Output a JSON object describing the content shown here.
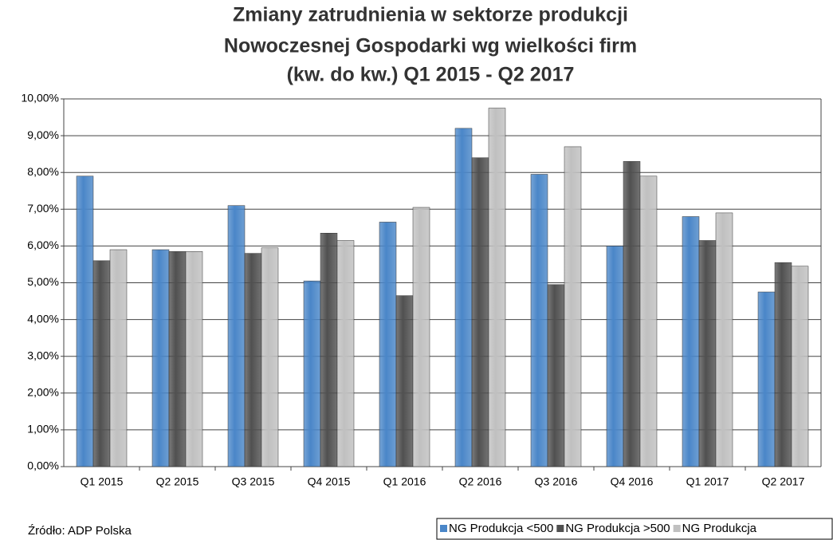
{
  "chart_data": {
    "type": "bar",
    "title": [
      "Zmiany  zatrudnienia w sektorze produkcji",
      "Nowoczesnej Gospodarki wg wielkości firm",
      "(kw. do kw.) Q1 2015 - Q2 2017"
    ],
    "categories": [
      "Q1 2015",
      "Q2 2015",
      "Q3 2015",
      "Q4 2015",
      "Q1 2016",
      "Q2 2016",
      "Q3 2016",
      "Q4 2016",
      "Q1 2017",
      "Q2 2017"
    ],
    "series": [
      {
        "name": "NG Produkcja <500",
        "color": "#4a86c8",
        "values": [
          7.9,
          5.9,
          7.1,
          5.05,
          6.65,
          9.2,
          7.95,
          6.0,
          6.8,
          4.75
        ]
      },
      {
        "name": "NG Produkcja >500",
        "color": "#505050",
        "values": [
          5.6,
          5.85,
          5.8,
          6.35,
          4.65,
          8.4,
          4.95,
          8.3,
          6.15,
          5.55
        ]
      },
      {
        "name": "NG Produkcja",
        "color": "#c0c0c0",
        "values": [
          5.9,
          5.85,
          5.95,
          6.15,
          7.05,
          9.75,
          8.7,
          7.9,
          6.9,
          5.45
        ]
      }
    ],
    "ylim": [
      0,
      10
    ],
    "yticks": [
      {
        "value": 0,
        "label": "0,00%"
      },
      {
        "value": 1,
        "label": "1,00%"
      },
      {
        "value": 2,
        "label": "2,00%"
      },
      {
        "value": 3,
        "label": "3,00%"
      },
      {
        "value": 4,
        "label": "4,00%"
      },
      {
        "value": 5,
        "label": "5,00%"
      },
      {
        "value": 6,
        "label": "6,00%"
      },
      {
        "value": 7,
        "label": "7,00%"
      },
      {
        "value": 8,
        "label": "8,00%"
      },
      {
        "value": 9,
        "label": "9,00%"
      },
      {
        "value": 10,
        "label": "10,00%"
      }
    ],
    "grid": true,
    "legend": "bottom-right",
    "source": "Źródło: ADP Polska"
  }
}
